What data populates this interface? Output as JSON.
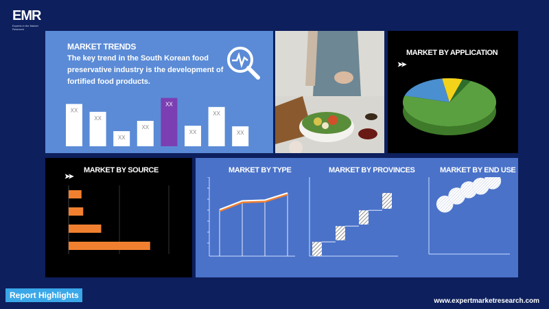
{
  "brand": {
    "logo": "EMR",
    "tagline": "Experts in the Market Research"
  },
  "trends": {
    "title": "MARKET TRENDS",
    "text": "The key trend in the South Korean food preservative industry is the development of fortified food products."
  },
  "application": {
    "title": "MARKET BY APPLICATION"
  },
  "source": {
    "title": "MARKET BY SOURCE"
  },
  "type": {
    "title": "MARKET BY TYPE"
  },
  "provinces": {
    "title": "MARKET BY PROVINCES"
  },
  "end_use": {
    "title": "MARKET BY END USE"
  },
  "footer": {
    "button_label": "Report Highlights",
    "website": "www.expertmarketresearch.com"
  },
  "colors": {
    "background": "#0d1f5c",
    "panel_blue": "#5b8bd6",
    "highlight": "#7b3fb3",
    "orange": "#f08030",
    "green": "#5aa040",
    "sky": "#4a8fd0",
    "yellow": "#f5d21a"
  },
  "chart_data": [
    {
      "type": "bar",
      "name": "trends",
      "categories": [
        "XX",
        "XX",
        "XX",
        "XX",
        "XX",
        "XX",
        "XX",
        "XX"
      ],
      "values": [
        70,
        57,
        25,
        42,
        80,
        34,
        65,
        33
      ],
      "highlight_index": 4,
      "ylim": [
        0,
        100
      ]
    },
    {
      "type": "pie",
      "name": "application",
      "values": [
        72,
        18,
        7,
        3
      ],
      "colors": [
        "#5aa040",
        "#4a8fd0",
        "#f5d21a",
        "#2d6e2a"
      ]
    },
    {
      "type": "bar",
      "name": "source",
      "orientation": "horizontal",
      "values": [
        15,
        17,
        38,
        95
      ],
      "xlim": [
        0,
        100
      ]
    },
    {
      "type": "line",
      "name": "type",
      "x": [
        1,
        2,
        3,
        4
      ],
      "values": [
        59,
        70,
        71,
        80
      ],
      "ylim": [
        0,
        100
      ]
    },
    {
      "type": "bar",
      "name": "provinces",
      "values": [
        [
          0,
          18
        ],
        [
          20,
          38
        ],
        [
          40,
          58
        ],
        [
          60,
          80
        ]
      ],
      "ylim": [
        0,
        100
      ]
    },
    {
      "type": "scatter",
      "name": "end_use",
      "x": [
        16,
        28,
        40,
        52,
        64
      ],
      "values": [
        56,
        65,
        72,
        76,
        82
      ],
      "size": 9
    }
  ]
}
